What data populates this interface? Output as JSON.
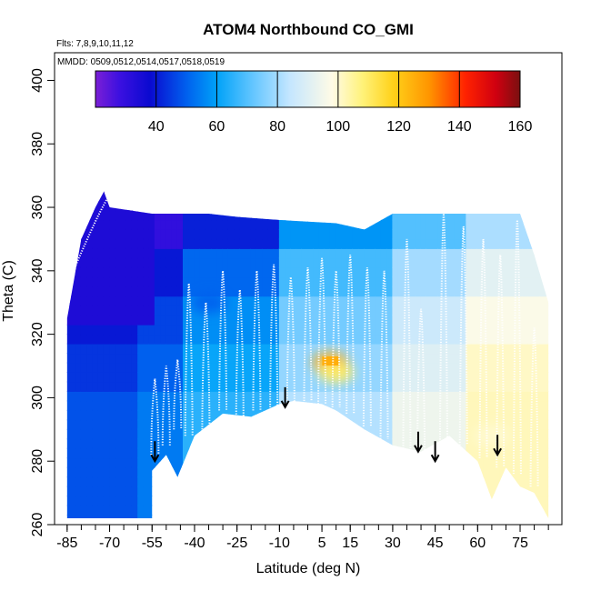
{
  "chart_data": {
    "type": "heatmap",
    "title": "ATOM4 Northbound CO_GMI",
    "flights_label": "Flts: 7,8,9,10,11,12",
    "dates_label": "MMDD: 0509,0512,0514,0517,0518,0519",
    "xlabel": "Latitude (deg N)",
    "ylabel": "Theta (C)",
    "xlim": [
      -88,
      88
    ],
    "ylim": [
      260,
      405
    ],
    "x_ticks": [
      -85,
      -70,
      -55,
      -40,
      -25,
      -10,
      5,
      15,
      30,
      45,
      60,
      75
    ],
    "x_tick_labels": [
      "-85",
      "-70",
      "-55",
      "-40",
      "-25",
      "-10",
      "5",
      "15",
      "30",
      "45",
      "60",
      "75"
    ],
    "y_ticks": [
      260,
      280,
      300,
      320,
      340,
      360,
      380,
      400
    ],
    "y_tick_labels": [
      "260",
      "280",
      "300",
      "320",
      "340",
      "360",
      "380",
      "400"
    ],
    "colorbar": {
      "range": [
        20,
        160
      ],
      "tick_values": [
        40,
        60,
        80,
        100,
        120,
        140,
        160
      ],
      "tick_labels": [
        "40",
        "60",
        "80",
        "100",
        "120",
        "140",
        "160"
      ],
      "stops": [
        {
          "value": 20,
          "color": "#7b1fd6"
        },
        {
          "value": 28,
          "color": "#3b10e0"
        },
        {
          "value": 38,
          "color": "#0a0ad0"
        },
        {
          "value": 50,
          "color": "#0060ee"
        },
        {
          "value": 60,
          "color": "#00a2f8"
        },
        {
          "value": 72,
          "color": "#64c6ff"
        },
        {
          "value": 84,
          "color": "#c4e6ff"
        },
        {
          "value": 98,
          "color": "#fffbe6"
        },
        {
          "value": 108,
          "color": "#fff27a"
        },
        {
          "value": 118,
          "color": "#ffd21a"
        },
        {
          "value": 130,
          "color": "#ff9500"
        },
        {
          "value": 142,
          "color": "#ff2200"
        },
        {
          "value": 152,
          "color": "#d00010"
        },
        {
          "value": 160,
          "color": "#7a1010"
        }
      ]
    },
    "field_top_theta": [
      [
        -85,
        325
      ],
      [
        -80,
        350
      ],
      [
        -75,
        360
      ],
      [
        -72,
        365
      ],
      [
        -70,
        360
      ],
      [
        -55,
        358
      ],
      [
        -35,
        358
      ],
      [
        -25,
        357
      ],
      [
        -10,
        356
      ],
      [
        10,
        355
      ],
      [
        20,
        353
      ],
      [
        30,
        358
      ],
      [
        45,
        358
      ],
      [
        60,
        358
      ],
      [
        70,
        358
      ],
      [
        75,
        358
      ],
      [
        80,
        345
      ],
      [
        85,
        330
      ]
    ],
    "field_bottom_theta": [
      [
        -85,
        262
      ],
      [
        -75,
        262
      ],
      [
        -60,
        262
      ],
      [
        -55,
        262
      ],
      [
        -55,
        277
      ],
      [
        -50,
        282
      ],
      [
        -46,
        275
      ],
      [
        -40,
        288
      ],
      [
        -30,
        295
      ],
      [
        -20,
        294
      ],
      [
        -10,
        298
      ],
      [
        -5,
        299
      ],
      [
        5,
        298
      ],
      [
        10,
        296
      ],
      [
        20,
        290
      ],
      [
        30,
        285
      ],
      [
        40,
        283
      ],
      [
        50,
        288
      ],
      [
        60,
        280
      ],
      [
        65,
        268
      ],
      [
        70,
        278
      ],
      [
        75,
        272
      ],
      [
        80,
        270
      ],
      [
        85,
        262
      ]
    ],
    "co_anomalies": [
      {
        "lat": 8,
        "theta": 311,
        "value": 125
      },
      {
        "lat": 10,
        "theta": 308,
        "value": 110
      },
      {
        "lat": 65,
        "theta": 288,
        "value": 100
      },
      {
        "lat": -35,
        "theta": 330,
        "value": 50
      }
    ],
    "flight_track_profiles": [
      {
        "lat": -54,
        "theta_bottom": 282,
        "theta_top": 306
      },
      {
        "lat": -50,
        "theta_bottom": 285,
        "theta_top": 310
      },
      {
        "lat": -46,
        "theta_bottom": 290,
        "theta_top": 312
      },
      {
        "lat": -42,
        "theta_bottom": 288,
        "theta_top": 336
      },
      {
        "lat": -36,
        "theta_bottom": 290,
        "theta_top": 330
      },
      {
        "lat": -30,
        "theta_bottom": 296,
        "theta_top": 340
      },
      {
        "lat": -24,
        "theta_bottom": 294,
        "theta_top": 334
      },
      {
        "lat": -18,
        "theta_bottom": 296,
        "theta_top": 340
      },
      {
        "lat": -12,
        "theta_bottom": 297,
        "theta_top": 342
      },
      {
        "lat": -6,
        "theta_bottom": 299,
        "theta_top": 338
      },
      {
        "lat": 0,
        "theta_bottom": 299,
        "theta_top": 341
      },
      {
        "lat": 5,
        "theta_bottom": 298,
        "theta_top": 344
      },
      {
        "lat": 10,
        "theta_bottom": 297,
        "theta_top": 340
      },
      {
        "lat": 15,
        "theta_bottom": 295,
        "theta_top": 345
      },
      {
        "lat": 21,
        "theta_bottom": 291,
        "theta_top": 341
      },
      {
        "lat": 27,
        "theta_bottom": 287,
        "theta_top": 340
      },
      {
        "lat": 35,
        "theta_bottom": 284,
        "theta_top": 350
      },
      {
        "lat": 40,
        "theta_bottom": 283,
        "theta_top": 328
      },
      {
        "lat": 48,
        "theta_bottom": 286,
        "theta_top": 358
      },
      {
        "lat": 55,
        "theta_bottom": 285,
        "theta_top": 354
      },
      {
        "lat": 62,
        "theta_bottom": 281,
        "theta_top": 350
      },
      {
        "lat": 68,
        "theta_bottom": 278,
        "theta_top": 345
      },
      {
        "lat": 74,
        "theta_bottom": 276,
        "theta_top": 356
      },
      {
        "lat": 80,
        "theta_bottom": 272,
        "theta_top": 322
      }
    ],
    "arrows": [
      {
        "lat": -54,
        "theta": 280
      },
      {
        "lat": -8,
        "theta": 297
      },
      {
        "lat": 39,
        "theta": 283
      },
      {
        "lat": 45,
        "theta": 280
      },
      {
        "lat": 67,
        "theta": 282
      }
    ]
  }
}
